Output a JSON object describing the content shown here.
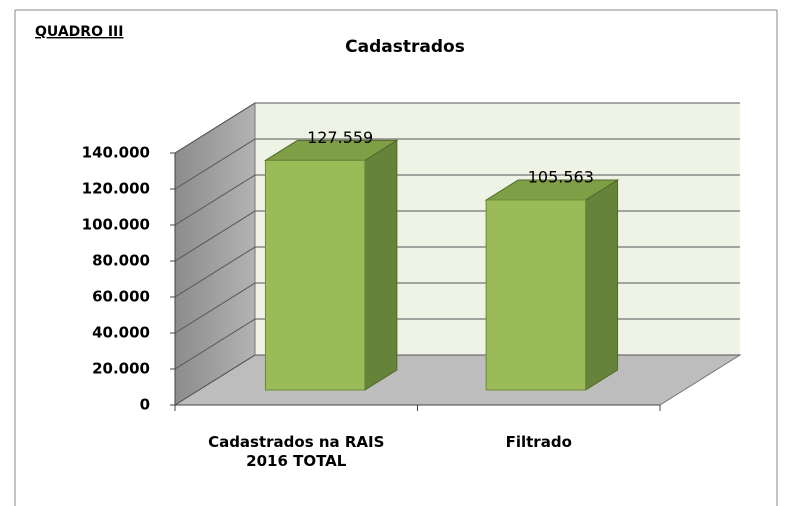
{
  "chart_data": {
    "type": "bar3d",
    "title": "Cadastrados",
    "annotation": "QUADRO III",
    "categories": [
      "Cadastrados na RAIS 2016 TOTAL",
      "Filtrado"
    ],
    "values": [
      127559,
      105563
    ],
    "value_labels": [
      "127.559",
      "105.563"
    ],
    "color": "#9bbb59",
    "ylim": [
      0,
      140000
    ],
    "yticks": [
      0,
      {
        "value": 20000,
        "label": "20.000"
      },
      {
        "value": 40000,
        "label": "40.000"
      },
      {
        "value": 60000,
        "label": "60.000"
      },
      {
        "value": 80000,
        "label": "80.000"
      },
      {
        "value": 100000,
        "label": "100.000"
      },
      {
        "value": 120000,
        "label": "120.000"
      },
      {
        "value": 140000,
        "label": "140.000"
      }
    ],
    "grid": true
  }
}
